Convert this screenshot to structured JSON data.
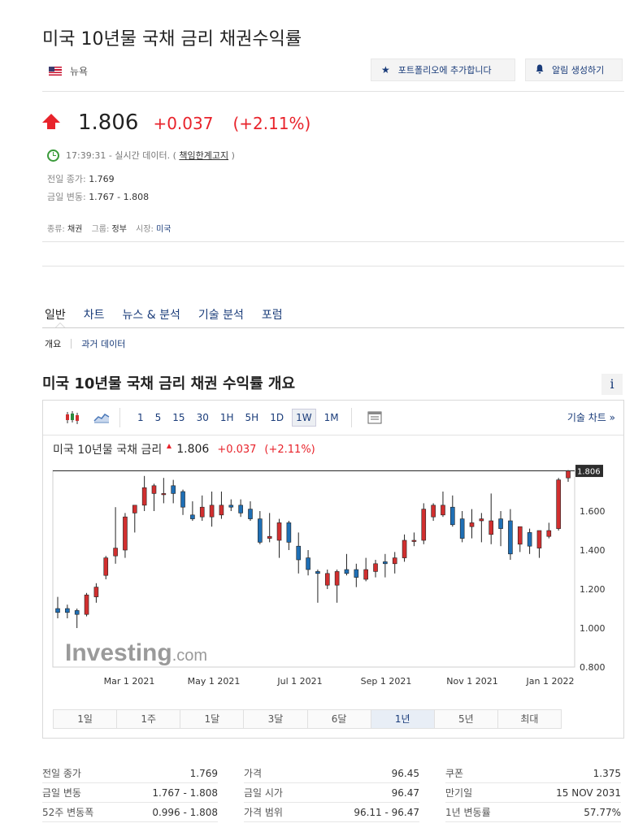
{
  "header": {
    "title": "미국 10년물 국채 금리 채권수익률",
    "country": "뉴욕",
    "portfolio_label": "포트폴리오에 추가합니다",
    "alert_label": "알림 생성하기"
  },
  "quote": {
    "price": "1.806",
    "change": "+0.037",
    "change_pct": "(+2.11%)",
    "time_text": "17:39:31 - 실시간 데이터. (",
    "disclaimer": "책임한계고지",
    "time_close": ")",
    "prev_close_label": "전일 종가:",
    "prev_close": "1.769",
    "day_range_label": "금일 변동:",
    "day_range": "1.767 - 1.808",
    "type_label": "종류:",
    "type": "채권",
    "group_label": "그룹:",
    "group": "정부",
    "market_label": "시장:",
    "market": "미국"
  },
  "tabs": {
    "items": [
      "일반",
      "차트",
      "뉴스 & 분석",
      "기술 분석",
      "포럼"
    ],
    "sub": [
      "개요",
      "과거 데이터"
    ]
  },
  "section_title": "미국 10년물 국채 금리  채권 수익률 개요",
  "info_label": "i",
  "toolbar": {
    "intervals": [
      "1",
      "5",
      "15",
      "30",
      "1H",
      "5H",
      "1D",
      "1W",
      "1M"
    ],
    "active_interval": "1W",
    "tech_chart": "기술 차트 »"
  },
  "chart_header": {
    "name": "미국 10년물 국채 금리",
    "price": "1.806",
    "change": "+0.037",
    "change_pct": "(+2.11%)"
  },
  "watermark": {
    "brand": "Investing",
    "suffix": ".com"
  },
  "colors": {
    "up": "#d12f2f",
    "down": "#1f6fb5",
    "accent": "#1a3c7a",
    "red": "#e8232b"
  },
  "chart_data": {
    "type": "candlestick",
    "title": "미국 10년물 국채 금리",
    "ylim": [
      0.8,
      1.85
    ],
    "y_ticks": [
      "0.800",
      "1.000",
      "1.200",
      "1.400",
      "1.600"
    ],
    "x_ticks": [
      "Mar 1 2021",
      "May 1 2021",
      "Jul 1 2021",
      "Sep 1 2021",
      "Nov 1 2021",
      "Jan 1 2022"
    ],
    "last_price_label": "1.806",
    "last_price": 1.806,
    "candles": [
      {
        "o": 1.1,
        "h": 1.16,
        "l": 1.05,
        "c": 1.08
      },
      {
        "o": 1.1,
        "h": 1.12,
        "l": 1.05,
        "c": 1.08
      },
      {
        "o": 1.09,
        "h": 1.1,
        "l": 1.0,
        "c": 1.07
      },
      {
        "o": 1.07,
        "h": 1.18,
        "l": 1.06,
        "c": 1.17
      },
      {
        "o": 1.16,
        "h": 1.23,
        "l": 1.13,
        "c": 1.21
      },
      {
        "o": 1.27,
        "h": 1.37,
        "l": 1.25,
        "c": 1.36
      },
      {
        "o": 1.37,
        "h": 1.62,
        "l": 1.33,
        "c": 1.41
      },
      {
        "o": 1.4,
        "h": 1.59,
        "l": 1.36,
        "c": 1.57
      },
      {
        "o": 1.59,
        "h": 1.63,
        "l": 1.49,
        "c": 1.63
      },
      {
        "o": 1.63,
        "h": 1.78,
        "l": 1.6,
        "c": 1.72
      },
      {
        "o": 1.69,
        "h": 1.74,
        "l": 1.6,
        "c": 1.73
      },
      {
        "o": 1.69,
        "h": 1.77,
        "l": 1.64,
        "c": 1.69
      },
      {
        "o": 1.73,
        "h": 1.76,
        "l": 1.64,
        "c": 1.69
      },
      {
        "o": 1.7,
        "h": 1.71,
        "l": 1.58,
        "c": 1.62
      },
      {
        "o": 1.58,
        "h": 1.65,
        "l": 1.55,
        "c": 1.56
      },
      {
        "o": 1.57,
        "h": 1.68,
        "l": 1.55,
        "c": 1.62
      },
      {
        "o": 1.57,
        "h": 1.7,
        "l": 1.52,
        "c": 1.63
      },
      {
        "o": 1.58,
        "h": 1.7,
        "l": 1.56,
        "c": 1.63
      },
      {
        "o": 1.63,
        "h": 1.66,
        "l": 1.6,
        "c": 1.62
      },
      {
        "o": 1.63,
        "h": 1.66,
        "l": 1.57,
        "c": 1.59
      },
      {
        "o": 1.61,
        "h": 1.65,
        "l": 1.55,
        "c": 1.56
      },
      {
        "o": 1.56,
        "h": 1.6,
        "l": 1.43,
        "c": 1.44
      },
      {
        "o": 1.46,
        "h": 1.59,
        "l": 1.44,
        "c": 1.47
      },
      {
        "o": 1.45,
        "h": 1.56,
        "l": 1.36,
        "c": 1.54
      },
      {
        "o": 1.54,
        "h": 1.55,
        "l": 1.4,
        "c": 1.44
      },
      {
        "o": 1.42,
        "h": 1.49,
        "l": 1.28,
        "c": 1.35
      },
      {
        "o": 1.36,
        "h": 1.4,
        "l": 1.27,
        "c": 1.3
      },
      {
        "o": 1.29,
        "h": 1.3,
        "l": 1.13,
        "c": 1.28
      },
      {
        "o": 1.22,
        "h": 1.3,
        "l": 1.2,
        "c": 1.28
      },
      {
        "o": 1.22,
        "h": 1.3,
        "l": 1.13,
        "c": 1.29
      },
      {
        "o": 1.3,
        "h": 1.38,
        "l": 1.27,
        "c": 1.28
      },
      {
        "o": 1.3,
        "h": 1.33,
        "l": 1.21,
        "c": 1.26
      },
      {
        "o": 1.25,
        "h": 1.36,
        "l": 1.24,
        "c": 1.3
      },
      {
        "o": 1.29,
        "h": 1.35,
        "l": 1.26,
        "c": 1.33
      },
      {
        "o": 1.34,
        "h": 1.38,
        "l": 1.26,
        "c": 1.33
      },
      {
        "o": 1.33,
        "h": 1.39,
        "l": 1.28,
        "c": 1.36
      },
      {
        "o": 1.36,
        "h": 1.48,
        "l": 1.34,
        "c": 1.45
      },
      {
        "o": 1.45,
        "h": 1.49,
        "l": 1.42,
        "c": 1.45
      },
      {
        "o": 1.45,
        "h": 1.64,
        "l": 1.43,
        "c": 1.61
      },
      {
        "o": 1.57,
        "h": 1.64,
        "l": 1.55,
        "c": 1.63
      },
      {
        "o": 1.58,
        "h": 1.7,
        "l": 1.57,
        "c": 1.63
      },
      {
        "o": 1.62,
        "h": 1.68,
        "l": 1.52,
        "c": 1.53
      },
      {
        "o": 1.56,
        "h": 1.6,
        "l": 1.44,
        "c": 1.46
      },
      {
        "o": 1.52,
        "h": 1.61,
        "l": 1.46,
        "c": 1.54
      },
      {
        "o": 1.55,
        "h": 1.59,
        "l": 1.44,
        "c": 1.56
      },
      {
        "o": 1.48,
        "h": 1.69,
        "l": 1.43,
        "c": 1.55
      },
      {
        "o": 1.56,
        "h": 1.6,
        "l": 1.42,
        "c": 1.51
      },
      {
        "o": 1.55,
        "h": 1.61,
        "l": 1.35,
        "c": 1.38
      },
      {
        "o": 1.43,
        "h": 1.52,
        "l": 1.39,
        "c": 1.52
      },
      {
        "o": 1.49,
        "h": 1.51,
        "l": 1.38,
        "c": 1.42
      },
      {
        "o": 1.41,
        "h": 1.5,
        "l": 1.36,
        "c": 1.5
      },
      {
        "o": 1.47,
        "h": 1.54,
        "l": 1.46,
        "c": 1.5
      },
      {
        "o": 1.51,
        "h": 1.77,
        "l": 1.5,
        "c": 1.76
      },
      {
        "o": 1.77,
        "h": 1.81,
        "l": 1.75,
        "c": 1.806
      }
    ]
  },
  "ranges": {
    "items": [
      "1일",
      "1주",
      "1달",
      "3달",
      "6달",
      "1년",
      "5년",
      "최대"
    ],
    "active": "1년"
  },
  "stats": {
    "col1": [
      {
        "k": "전일 종가",
        "v": "1.769"
      },
      {
        "k": "금일 변동",
        "v": "1.767 - 1.808"
      },
      {
        "k": "52주 변동폭",
        "v": "0.996 - 1.808"
      }
    ],
    "col2": [
      {
        "k": "가격",
        "v": "96.45"
      },
      {
        "k": "금일 시가",
        "v": "96.47"
      },
      {
        "k": "가격 범위",
        "v": "96.11 - 96.47"
      }
    ],
    "col3": [
      {
        "k": "쿠폰",
        "v": "1.375"
      },
      {
        "k": "만기일",
        "v": "15 NOV 2031"
      },
      {
        "k": "1년 변동률",
        "v": "57.77%"
      }
    ]
  }
}
